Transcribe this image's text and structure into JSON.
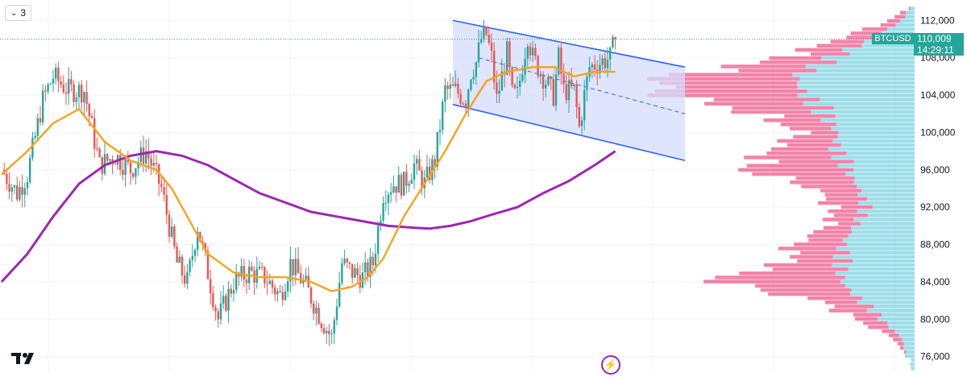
{
  "toolbar": {
    "collapse_count": "3",
    "collapse_icon": "chevron-down-icon"
  },
  "symbol": "BTCUSD",
  "last_price": "110,009",
  "countdown": "14:29:11",
  "colors": {
    "up": "#26a69a",
    "down": "#ef5350",
    "ma_fast": "#f7a21b",
    "ma_slow": "#9c27b0",
    "channel": "#2962ff",
    "channel_fill": "#d4dcfc",
    "vp_up": "#4fc3d7",
    "vp_down": "#e91e63"
  },
  "chart_data": {
    "type": "candlestick",
    "y_axis": {
      "min": 74500,
      "max": 113500,
      "ticks": [
        76000,
        80000,
        84000,
        88000,
        92000,
        96000,
        100000,
        104000,
        108000,
        112000
      ],
      "tick_labels": [
        "76,000",
        "80,000",
        "84,000",
        "88,000",
        "92,000",
        "96,000",
        "100,000",
        "104,000",
        "108,000",
        "112,000"
      ]
    },
    "bars": 190,
    "anchors": [
      [
        0,
        96000
      ],
      [
        6,
        93500
      ],
      [
        10,
        95500
      ],
      [
        16,
        103500
      ],
      [
        20,
        106000
      ],
      [
        26,
        104500
      ],
      [
        32,
        104500
      ],
      [
        38,
        96500
      ],
      [
        44,
        97500
      ],
      [
        50,
        96000
      ],
      [
        56,
        98000
      ],
      [
        62,
        94000
      ],
      [
        68,
        86000
      ],
      [
        72,
        84000
      ],
      [
        76,
        90000
      ],
      [
        80,
        85000
      ],
      [
        84,
        80000
      ],
      [
        90,
        84000
      ],
      [
        96,
        85000
      ],
      [
        102,
        84500
      ],
      [
        108,
        82500
      ],
      [
        112,
        86000
      ],
      [
        118,
        83500
      ],
      [
        124,
        80000
      ],
      [
        128,
        78000
      ],
      [
        132,
        86000
      ],
      [
        136,
        85000
      ],
      [
        140,
        84500
      ],
      [
        144,
        86000
      ],
      [
        148,
        93500
      ],
      [
        152,
        94500
      ],
      [
        156,
        94500
      ],
      [
        160,
        96500
      ],
      [
        164,
        94500
      ],
      [
        168,
        97000
      ],
      [
        172,
        104500
      ],
      [
        176,
        104500
      ],
      [
        180,
        103500
      ],
      [
        182,
        106500
      ],
      [
        184,
        107500
      ],
      [
        186,
        110000
      ],
      [
        188,
        110500
      ],
      [
        190,
        108000
      ],
      [
        192,
        103500
      ],
      [
        194,
        106000
      ],
      [
        196,
        108500
      ],
      [
        198,
        104000
      ],
      [
        200,
        104000
      ],
      [
        204,
        110500
      ],
      [
        206,
        108000
      ],
      [
        210,
        106000
      ],
      [
        214,
        104000
      ],
      [
        216,
        108000
      ],
      [
        218,
        104500
      ],
      [
        222,
        104500
      ],
      [
        224,
        100500
      ],
      [
        226,
        104000
      ],
      [
        228,
        107000
      ],
      [
        232,
        107500
      ],
      [
        236,
        108000
      ],
      [
        238,
        110009
      ]
    ],
    "ma_fast": [
      [
        0,
        95500
      ],
      [
        10,
        98000
      ],
      [
        20,
        101000
      ],
      [
        30,
        102500
      ],
      [
        40,
        99000
      ],
      [
        50,
        97000
      ],
      [
        60,
        96000
      ],
      [
        66,
        94000
      ],
      [
        72,
        91000
      ],
      [
        80,
        87000
      ],
      [
        90,
        85000
      ],
      [
        100,
        84500
      ],
      [
        110,
        84500
      ],
      [
        120,
        84000
      ],
      [
        128,
        83000
      ],
      [
        136,
        83500
      ],
      [
        142,
        84500
      ],
      [
        148,
        86500
      ],
      [
        156,
        91000
      ],
      [
        164,
        94500
      ],
      [
        172,
        98000
      ],
      [
        180,
        102000
      ],
      [
        188,
        105500
      ],
      [
        196,
        106500
      ],
      [
        206,
        107000
      ],
      [
        214,
        107000
      ],
      [
        222,
        106000
      ],
      [
        230,
        106500
      ],
      [
        238,
        106500
      ]
    ],
    "ma_slow": [
      [
        0,
        84000
      ],
      [
        10,
        87000
      ],
      [
        20,
        91000
      ],
      [
        30,
        94500
      ],
      [
        40,
        96500
      ],
      [
        50,
        97500
      ],
      [
        60,
        98000
      ],
      [
        70,
        97500
      ],
      [
        80,
        96500
      ],
      [
        90,
        95000
      ],
      [
        100,
        93500
      ],
      [
        110,
        92500
      ],
      [
        120,
        91500
      ],
      [
        130,
        91000
      ],
      [
        140,
        90500
      ],
      [
        150,
        90000
      ],
      [
        160,
        89800
      ],
      [
        166,
        89700
      ],
      [
        174,
        90000
      ],
      [
        182,
        90500
      ],
      [
        190,
        91200
      ],
      [
        200,
        92000
      ],
      [
        210,
        93500
      ],
      [
        220,
        94800
      ],
      [
        230,
        96500
      ],
      [
        238,
        98000
      ]
    ],
    "channel": {
      "upper": [
        [
          175,
          112000
        ],
        [
          265,
          107000
        ]
      ],
      "lower": [
        [
          175,
          103000
        ],
        [
          265,
          97000
        ]
      ],
      "mid": [
        [
          185,
          108000
        ],
        [
          265,
          102000
        ]
      ]
    },
    "volume_profile": {
      "rows": 88,
      "anchors_up": [
        [
          76000,
          10
        ],
        [
          78000,
          15
        ],
        [
          80000,
          40
        ],
        [
          82000,
          65
        ],
        [
          84000,
          85
        ],
        [
          86000,
          90
        ],
        [
          88000,
          85
        ],
        [
          90000,
          70
        ],
        [
          92000,
          60
        ],
        [
          94000,
          65
        ],
        [
          96000,
          80
        ],
        [
          98000,
          95
        ],
        [
          100000,
          90
        ],
        [
          102000,
          110
        ],
        [
          104000,
          130
        ],
        [
          106000,
          140
        ],
        [
          108000,
          100
        ],
        [
          110000,
          50
        ],
        [
          112000,
          15
        ],
        [
          113500,
          5
        ]
      ],
      "anchors_down": [
        [
          76000,
          0
        ],
        [
          78000,
          10
        ],
        [
          80000,
          30
        ],
        [
          82000,
          50
        ],
        [
          84000,
          150
        ],
        [
          85000,
          120
        ],
        [
          86000,
          60
        ],
        [
          88000,
          60
        ],
        [
          90000,
          30
        ],
        [
          92000,
          40
        ],
        [
          94000,
          50
        ],
        [
          96000,
          120
        ],
        [
          98000,
          80
        ],
        [
          100000,
          40
        ],
        [
          102000,
          80
        ],
        [
          104000,
          160
        ],
        [
          105500,
          170
        ],
        [
          107000,
          100
        ],
        [
          108000,
          60
        ],
        [
          110000,
          40
        ],
        [
          112000,
          15
        ],
        [
          113500,
          0
        ]
      ]
    }
  }
}
